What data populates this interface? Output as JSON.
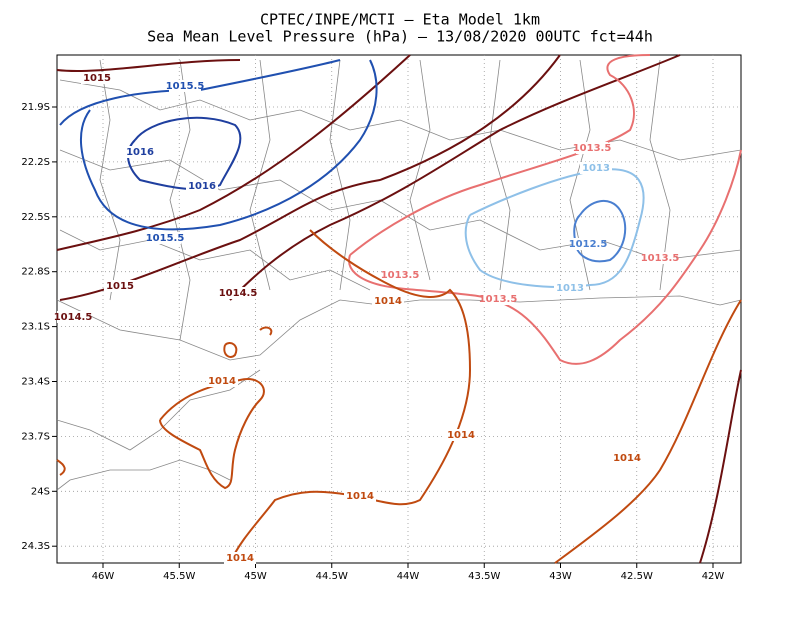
{
  "map": {
    "title": [
      "CPTEC/INPE/MCTI –  Eta Model 1km",
      "Sea Mean Level Pressure (hPa) – 13/08/2020 00UTC fct=44h"
    ],
    "x_labels": [
      "46W",
      "45.5W",
      "45W",
      "44.5W",
      "44W",
      "43.5W",
      "43W",
      "42.5W",
      "42W"
    ],
    "y_labels": [
      "21.9S",
      "22.2S",
      "22.5S",
      "22.8S",
      "23.1S",
      "23.4S",
      "23.7S",
      "24S",
      "24.3S"
    ],
    "contour_labels": [
      "1015",
      "1015.5",
      "1016",
      "1016",
      "1015.5",
      "1015",
      "1014.5",
      "1014.5",
      "1013.5",
      "1013",
      "1012.5",
      "1013.5",
      "1013.5",
      "1014",
      "1013.5",
      "1013",
      "1014",
      "1014",
      "1014",
      "1014",
      "1014"
    ]
  }
}
